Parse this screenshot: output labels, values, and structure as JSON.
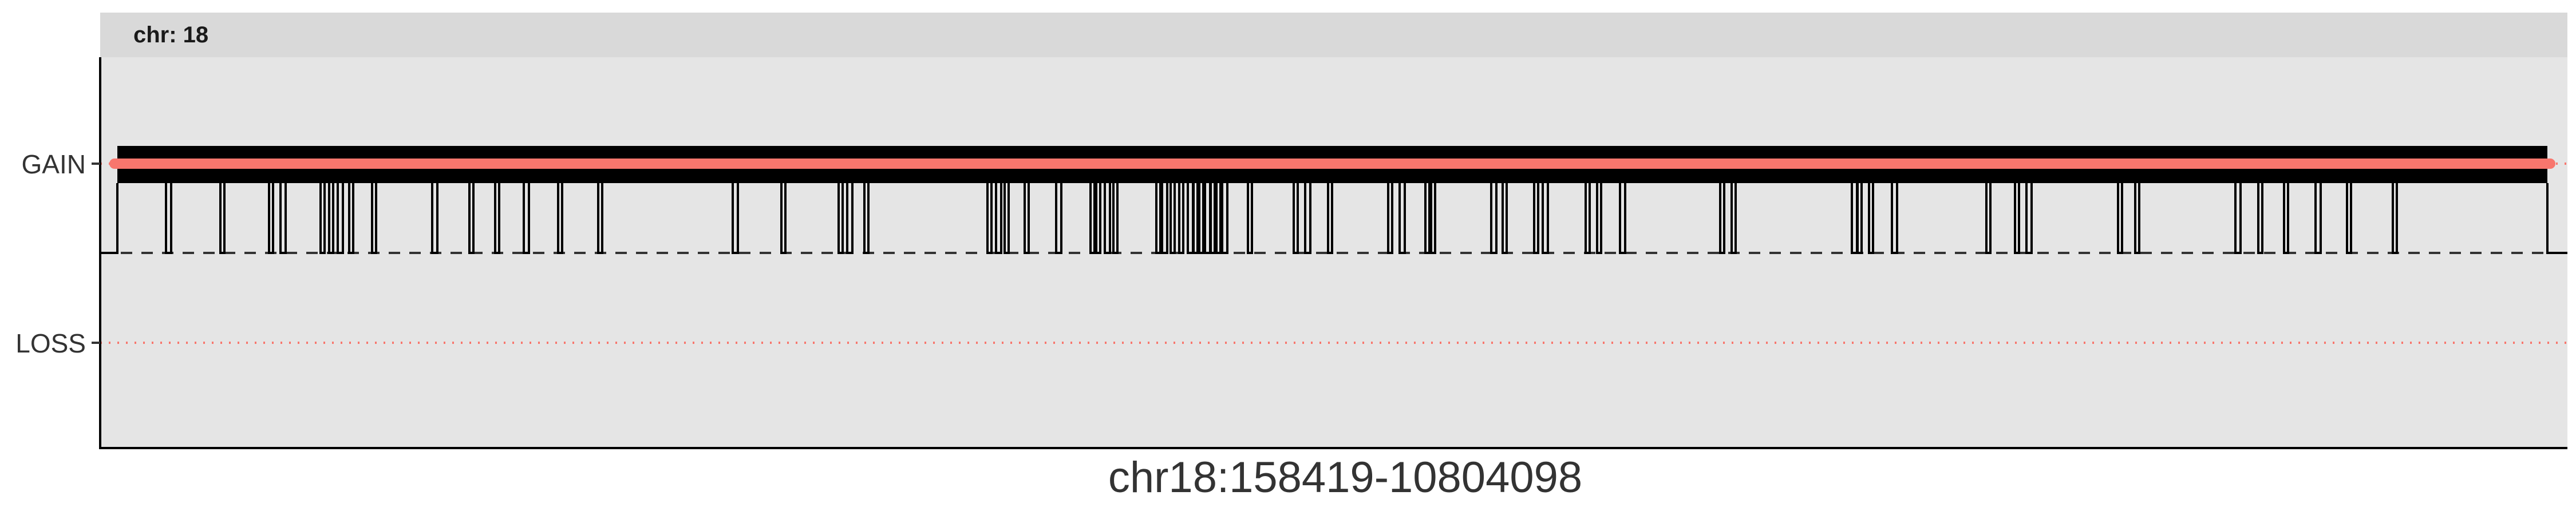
{
  "chart_data": {
    "type": "line",
    "facet": {
      "label": "chr: 18"
    },
    "xlabel": "chr18:158419-10804098",
    "ylabel": "",
    "yticks": [
      "GAIN",
      "LOSS"
    ],
    "colors": {
      "panel_bg": "#e5e5e5",
      "strip_bg": "#d9d9d9",
      "signal": "#000000",
      "segment": "#f8766d",
      "gain_ref": "#f8766d",
      "loss_ref": "#f8766d",
      "neutral_ref": "#333333"
    },
    "x_range": [
      158419,
      10804098
    ],
    "dips": [
      [
        158419,
        3
      ]
    ],
    "segment": {
      "state": "GAIN",
      "start": 158419,
      "end": 10804098
    }
  }
}
